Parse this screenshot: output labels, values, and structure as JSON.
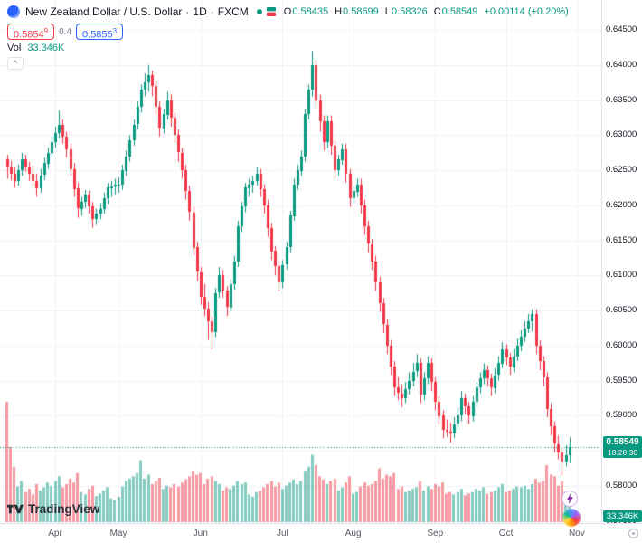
{
  "legend": {
    "symbol_title": "New Zealand Dollar / U.S. Dollar",
    "sep": "·",
    "interval": "1D",
    "exchange": "FXCM",
    "ohlc": {
      "o_label": "O",
      "o_value": "0.58435",
      "h_label": "H",
      "h_value": "0.58699",
      "l_label": "L",
      "l_value": "0.58326",
      "c_label": "C",
      "c_value": "0.58549",
      "change_value": "+0.00114 (+0.20%)"
    },
    "volume": {
      "label": "Vol",
      "value": "33.346K"
    }
  },
  "trade_panel": {
    "sell_main": "0.5854",
    "sell_sup": "9",
    "spread": "0.4",
    "buy_main": "0.5855",
    "buy_sup": "3"
  },
  "collapse": {
    "label": "^"
  },
  "watermark": {
    "brand": "TradingView"
  },
  "price_axis": {
    "tick_labels": [
      "0.64500",
      "0.64000",
      "0.63500",
      "0.63000",
      "0.62500",
      "0.62000",
      "0.61500",
      "0.61000",
      "0.60500",
      "0.60000",
      "0.59500",
      "0.59000",
      "0.58000",
      "0.57500"
    ],
    "last_price_badge": {
      "price": "0.58549",
      "countdown": "18:28:30"
    },
    "volume_badge": "33.346K"
  },
  "time_axis": {
    "labels": [
      {
        "text": "Apr",
        "index": 13
      },
      {
        "text": "May",
        "index": 30
      },
      {
        "text": "Jun",
        "index": 52
      },
      {
        "text": "Jul",
        "index": 74
      },
      {
        "text": "Aug",
        "index": 93
      },
      {
        "text": "Sep",
        "index": 115
      },
      {
        "text": "Oct",
        "index": 134
      },
      {
        "text": "Nov",
        "index": 153
      }
    ]
  },
  "colors": {
    "up": "#089981",
    "down": "#f23645",
    "volume_up": "rgba(8,153,129,0.5)",
    "volume_down": "rgba(242,54,69,0.5)",
    "grid": "#eff2f7",
    "axis_border": "#e0e3eb",
    "axis_text": "#131722",
    "time_text": "#555962",
    "blue": "#2962ff",
    "badge": "#089981"
  },
  "chart_data": {
    "type": "candlestick",
    "title": "New Zealand Dollar / U.S. Dollar · 1D · FXCM",
    "y_min": 0.575,
    "y_max": 0.645,
    "tick_step": 0.005,
    "last_price": 0.58549,
    "volume_max_k": 160,
    "candles": [
      [
        0.6265,
        0.6272,
        0.6238,
        0.6255,
        152
      ],
      [
        0.6255,
        0.6263,
        0.6235,
        0.6245,
        95
      ],
      [
        0.6245,
        0.6255,
        0.6225,
        0.6235,
        70
      ],
      [
        0.6235,
        0.6258,
        0.6228,
        0.625,
        45
      ],
      [
        0.625,
        0.6275,
        0.6242,
        0.6265,
        52
      ],
      [
        0.6265,
        0.6272,
        0.6248,
        0.6255,
        38
      ],
      [
        0.6255,
        0.6262,
        0.6235,
        0.6245,
        42
      ],
      [
        0.6245,
        0.6256,
        0.6228,
        0.6235,
        35
      ],
      [
        0.6235,
        0.6245,
        0.6212,
        0.6225,
        48
      ],
      [
        0.6225,
        0.6252,
        0.6218,
        0.6243,
        40
      ],
      [
        0.6243,
        0.6268,
        0.6236,
        0.626,
        44
      ],
      [
        0.626,
        0.6282,
        0.6252,
        0.6275,
        50
      ],
      [
        0.6275,
        0.6298,
        0.6268,
        0.629,
        46
      ],
      [
        0.629,
        0.6312,
        0.6282,
        0.6303,
        52
      ],
      [
        0.6303,
        0.6335,
        0.6295,
        0.6315,
        58
      ],
      [
        0.6315,
        0.6322,
        0.6288,
        0.6298,
        44
      ],
      [
        0.6298,
        0.6305,
        0.6268,
        0.628,
        48
      ],
      [
        0.628,
        0.6288,
        0.6242,
        0.6252,
        55
      ],
      [
        0.6252,
        0.626,
        0.6212,
        0.6224,
        50
      ],
      [
        0.6224,
        0.6232,
        0.6182,
        0.6195,
        62
      ],
      [
        0.6195,
        0.6212,
        0.6185,
        0.6205,
        38
      ],
      [
        0.6205,
        0.6222,
        0.6196,
        0.6215,
        35
      ],
      [
        0.6215,
        0.6221,
        0.6188,
        0.6198,
        42
      ],
      [
        0.6198,
        0.6205,
        0.6168,
        0.618,
        46
      ],
      [
        0.618,
        0.6195,
        0.6172,
        0.6188,
        33
      ],
      [
        0.6188,
        0.6203,
        0.618,
        0.6195,
        36
      ],
      [
        0.6195,
        0.6218,
        0.6188,
        0.621,
        40
      ],
      [
        0.621,
        0.6232,
        0.6202,
        0.6225,
        44
      ],
      [
        0.6225,
        0.6235,
        0.6212,
        0.6227,
        30
      ],
      [
        0.6227,
        0.6238,
        0.6215,
        0.6229,
        28
      ],
      [
        0.6229,
        0.624,
        0.6218,
        0.623,
        32
      ],
      [
        0.623,
        0.6258,
        0.6222,
        0.625,
        45
      ],
      [
        0.625,
        0.6278,
        0.6242,
        0.627,
        52
      ],
      [
        0.627,
        0.63,
        0.6262,
        0.6293,
        55
      ],
      [
        0.6293,
        0.6322,
        0.6285,
        0.6315,
        58
      ],
      [
        0.6315,
        0.6348,
        0.6308,
        0.634,
        62
      ],
      [
        0.634,
        0.6372,
        0.6332,
        0.6365,
        78
      ],
      [
        0.6365,
        0.6388,
        0.6355,
        0.6375,
        55
      ],
      [
        0.6375,
        0.64,
        0.6362,
        0.6385,
        60
      ],
      [
        0.6385,
        0.6392,
        0.6355,
        0.637,
        48
      ],
      [
        0.637,
        0.6378,
        0.6328,
        0.634,
        52
      ],
      [
        0.634,
        0.6348,
        0.6298,
        0.631,
        56
      ],
      [
        0.631,
        0.6338,
        0.6302,
        0.633,
        42
      ],
      [
        0.633,
        0.6362,
        0.6322,
        0.635,
        46
      ],
      [
        0.635,
        0.6358,
        0.6312,
        0.6325,
        44
      ],
      [
        0.6325,
        0.6332,
        0.6288,
        0.63,
        48
      ],
      [
        0.63,
        0.6308,
        0.6262,
        0.6275,
        45
      ],
      [
        0.6275,
        0.6282,
        0.6238,
        0.625,
        50
      ],
      [
        0.625,
        0.6258,
        0.6208,
        0.622,
        54
      ],
      [
        0.622,
        0.6228,
        0.6178,
        0.619,
        58
      ],
      [
        0.619,
        0.6198,
        0.6128,
        0.614,
        65
      ],
      [
        0.614,
        0.6148,
        0.6092,
        0.6105,
        60
      ],
      [
        0.6105,
        0.6112,
        0.6058,
        0.607,
        62
      ],
      [
        0.607,
        0.6088,
        0.6042,
        0.6053,
        48
      ],
      [
        0.6053,
        0.6062,
        0.6008,
        0.6035,
        55
      ],
      [
        0.6035,
        0.6042,
        0.5995,
        0.602,
        58
      ],
      [
        0.602,
        0.6082,
        0.6012,
        0.6075,
        52
      ],
      [
        0.6075,
        0.6112,
        0.6068,
        0.61,
        48
      ],
      [
        0.61,
        0.6108,
        0.6068,
        0.6078,
        40
      ],
      [
        0.6078,
        0.6085,
        0.6042,
        0.6055,
        44
      ],
      [
        0.6055,
        0.6095,
        0.6048,
        0.6088,
        42
      ],
      [
        0.6088,
        0.6128,
        0.608,
        0.612,
        46
      ],
      [
        0.612,
        0.6178,
        0.6112,
        0.617,
        52
      ],
      [
        0.617,
        0.6205,
        0.6162,
        0.6198,
        48
      ],
      [
        0.6198,
        0.6232,
        0.619,
        0.6225,
        50
      ],
      [
        0.6225,
        0.6238,
        0.6212,
        0.623,
        35
      ],
      [
        0.623,
        0.6242,
        0.6218,
        0.6235,
        32
      ],
      [
        0.6235,
        0.6255,
        0.6228,
        0.6245,
        38
      ],
      [
        0.6245,
        0.6252,
        0.6212,
        0.6223,
        40
      ],
      [
        0.6223,
        0.623,
        0.6188,
        0.62,
        44
      ],
      [
        0.62,
        0.6208,
        0.6155,
        0.6168,
        48
      ],
      [
        0.6168,
        0.6175,
        0.6122,
        0.6135,
        52
      ],
      [
        0.6135,
        0.6142,
        0.61,
        0.6113,
        45
      ],
      [
        0.6113,
        0.612,
        0.6078,
        0.609,
        50
      ],
      [
        0.609,
        0.6122,
        0.6082,
        0.6115,
        42
      ],
      [
        0.6115,
        0.6148,
        0.6108,
        0.614,
        46
      ],
      [
        0.614,
        0.6192,
        0.6132,
        0.6185,
        50
      ],
      [
        0.6185,
        0.6238,
        0.6178,
        0.623,
        54
      ],
      [
        0.623,
        0.6258,
        0.6222,
        0.625,
        48
      ],
      [
        0.625,
        0.6278,
        0.6242,
        0.627,
        52
      ],
      [
        0.627,
        0.6338,
        0.6262,
        0.633,
        65
      ],
      [
        0.633,
        0.6372,
        0.6322,
        0.6365,
        70
      ],
      [
        0.6365,
        0.642,
        0.6355,
        0.64,
        85
      ],
      [
        0.64,
        0.6408,
        0.6338,
        0.635,
        72
      ],
      [
        0.635,
        0.6358,
        0.6305,
        0.632,
        58
      ],
      [
        0.632,
        0.6328,
        0.6278,
        0.629,
        54
      ],
      [
        0.629,
        0.6328,
        0.6282,
        0.632,
        48
      ],
      [
        0.632,
        0.6328,
        0.6272,
        0.6285,
        52
      ],
      [
        0.6285,
        0.6292,
        0.6238,
        0.625,
        55
      ],
      [
        0.625,
        0.6272,
        0.6242,
        0.6265,
        40
      ],
      [
        0.6265,
        0.6288,
        0.6258,
        0.628,
        44
      ],
      [
        0.628,
        0.6288,
        0.6232,
        0.6245,
        50
      ],
      [
        0.6245,
        0.6252,
        0.6198,
        0.621,
        58
      ],
      [
        0.621,
        0.6228,
        0.6202,
        0.622,
        36
      ],
      [
        0.622,
        0.6238,
        0.6212,
        0.623,
        38
      ],
      [
        0.623,
        0.6238,
        0.6188,
        0.62,
        45
      ],
      [
        0.62,
        0.6208,
        0.6158,
        0.617,
        50
      ],
      [
        0.617,
        0.6178,
        0.6132,
        0.6145,
        46
      ],
      [
        0.6145,
        0.6152,
        0.6108,
        0.612,
        48
      ],
      [
        0.612,
        0.6128,
        0.6078,
        0.609,
        52
      ],
      [
        0.609,
        0.6098,
        0.6048,
        0.606,
        68
      ],
      [
        0.606,
        0.6068,
        0.6018,
        0.603,
        55
      ],
      [
        0.603,
        0.6038,
        0.5988,
        0.6,
        60
      ],
      [
        0.6,
        0.6008,
        0.5958,
        0.597,
        58
      ],
      [
        0.597,
        0.5978,
        0.5928,
        0.594,
        62
      ],
      [
        0.594,
        0.5955,
        0.5922,
        0.5932,
        42
      ],
      [
        0.5932,
        0.5945,
        0.5912,
        0.5925,
        45
      ],
      [
        0.5925,
        0.5948,
        0.5918,
        0.5938,
        38
      ],
      [
        0.5938,
        0.5962,
        0.593,
        0.595,
        40
      ],
      [
        0.595,
        0.5975,
        0.5942,
        0.5963,
        42
      ],
      [
        0.5963,
        0.5988,
        0.5955,
        0.5975,
        44
      ],
      [
        0.5975,
        0.5982,
        0.5918,
        0.593,
        52
      ],
      [
        0.593,
        0.5962,
        0.5922,
        0.5953,
        40
      ],
      [
        0.5953,
        0.5985,
        0.5945,
        0.5975,
        45
      ],
      [
        0.5975,
        0.5982,
        0.5935,
        0.5948,
        42
      ],
      [
        0.5948,
        0.5955,
        0.5908,
        0.592,
        48
      ],
      [
        0.592,
        0.5928,
        0.5888,
        0.59,
        45
      ],
      [
        0.59,
        0.5908,
        0.5868,
        0.588,
        50
      ],
      [
        0.588,
        0.5895,
        0.587,
        0.5878,
        36
      ],
      [
        0.5878,
        0.589,
        0.5862,
        0.5875,
        38
      ],
      [
        0.5875,
        0.5898,
        0.5868,
        0.5888,
        35
      ],
      [
        0.5888,
        0.5912,
        0.588,
        0.59,
        38
      ],
      [
        0.59,
        0.5935,
        0.5892,
        0.5925,
        42
      ],
      [
        0.5925,
        0.5932,
        0.5902,
        0.5913,
        34
      ],
      [
        0.5913,
        0.592,
        0.5888,
        0.59,
        36
      ],
      [
        0.59,
        0.5928,
        0.5892,
        0.592,
        38
      ],
      [
        0.592,
        0.5948,
        0.5912,
        0.594,
        42
      ],
      [
        0.594,
        0.5962,
        0.5932,
        0.5953,
        40
      ],
      [
        0.5953,
        0.5975,
        0.5945,
        0.5965,
        44
      ],
      [
        0.5965,
        0.5972,
        0.5942,
        0.5953,
        36
      ],
      [
        0.5953,
        0.596,
        0.5928,
        0.594,
        38
      ],
      [
        0.594,
        0.5968,
        0.5932,
        0.5958,
        40
      ],
      [
        0.5958,
        0.5985,
        0.595,
        0.5975,
        44
      ],
      [
        0.5975,
        0.6005,
        0.5968,
        0.5995,
        48
      ],
      [
        0.5995,
        0.6002,
        0.5972,
        0.5983,
        38
      ],
      [
        0.5983,
        0.599,
        0.5958,
        0.597,
        40
      ],
      [
        0.597,
        0.5995,
        0.5962,
        0.5985,
        42
      ],
      [
        0.5985,
        0.601,
        0.5978,
        0.6,
        45
      ],
      [
        0.6,
        0.6022,
        0.5992,
        0.6013,
        44
      ],
      [
        0.6013,
        0.6035,
        0.6005,
        0.6025,
        46
      ],
      [
        0.6025,
        0.6045,
        0.6018,
        0.6035,
        42
      ],
      [
        0.6035,
        0.6052,
        0.602,
        0.6045,
        48
      ],
      [
        0.6045,
        0.6052,
        0.5988,
        0.6,
        55
      ],
      [
        0.6,
        0.6008,
        0.5965,
        0.5978,
        50
      ],
      [
        0.5978,
        0.5985,
        0.5942,
        0.5955,
        52
      ],
      [
        0.5955,
        0.5962,
        0.5898,
        0.591,
        72
      ],
      [
        0.591,
        0.5918,
        0.5872,
        0.5885,
        60
      ],
      [
        0.5885,
        0.5892,
        0.5848,
        0.586,
        58
      ],
      [
        0.586,
        0.5872,
        0.5838,
        0.5848,
        46
      ],
      [
        0.5848,
        0.5855,
        0.5815,
        0.5835,
        52
      ],
      [
        0.5835,
        0.5858,
        0.5828,
        0.58435,
        38
      ],
      [
        0.58435,
        0.58699,
        0.58326,
        0.58549,
        33.346
      ]
    ]
  }
}
